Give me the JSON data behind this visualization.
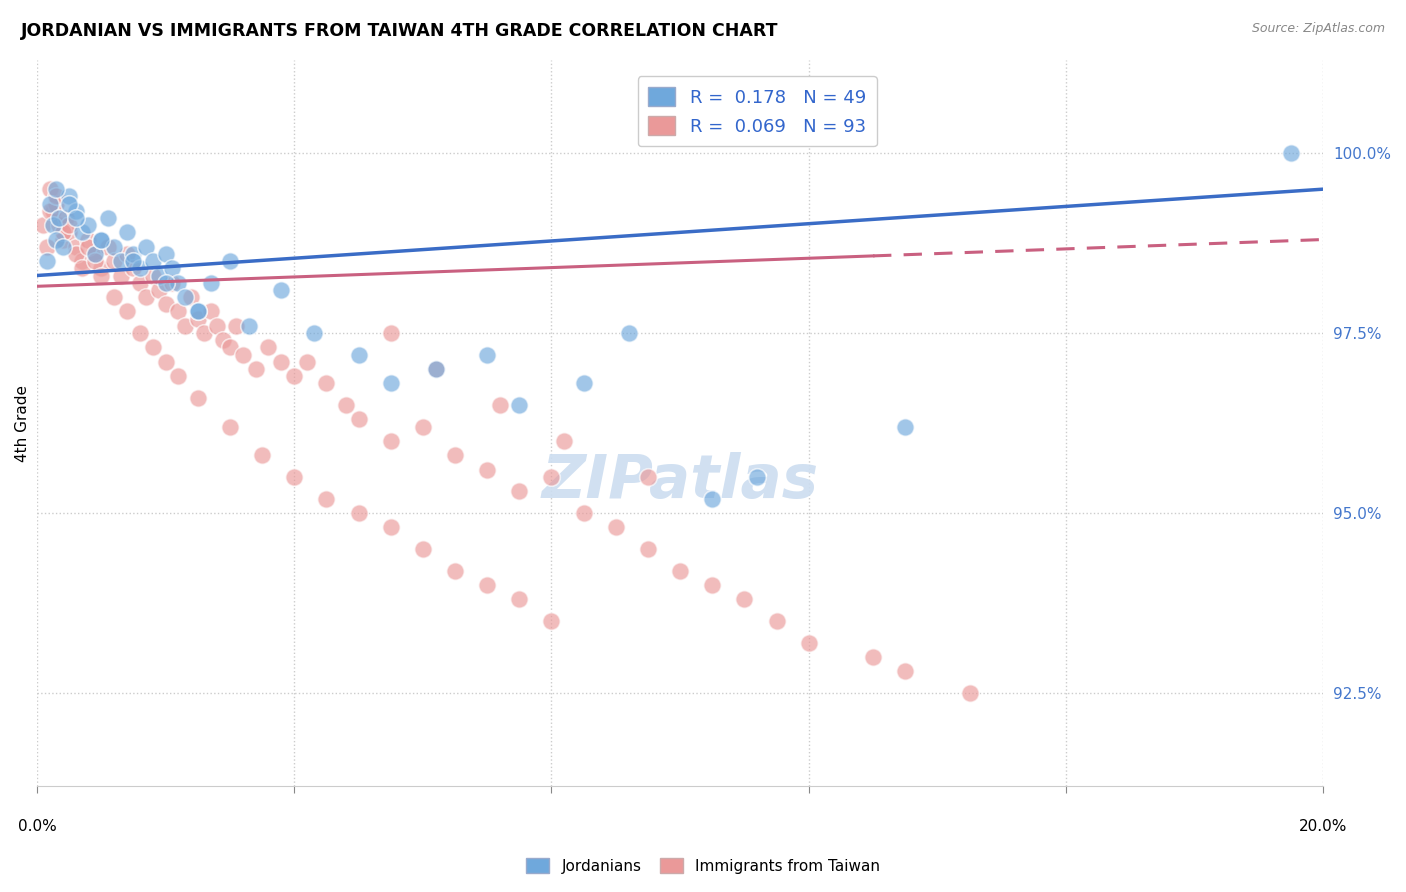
{
  "title": "JORDANIAN VS IMMIGRANTS FROM TAIWAN 4TH GRADE CORRELATION CHART",
  "source_text": "Source: ZipAtlas.com",
  "ylabel": "4th Grade",
  "xlim": [
    0.0,
    20.0
  ],
  "ylim": [
    91.2,
    101.3
  ],
  "yticks": [
    92.5,
    95.0,
    97.5,
    100.0
  ],
  "ytick_labels": [
    "92.5%",
    "95.0%",
    "97.5%",
    "100.0%"
  ],
  "blue_R": 0.178,
  "blue_N": 49,
  "pink_R": 0.069,
  "pink_N": 93,
  "blue_color": "#6fa8dc",
  "pink_color": "#ea9999",
  "blue_line_color": "#3a6cc6",
  "pink_line_color": "#c96080",
  "legend_label_blue": "Jordanians",
  "legend_label_pink": "Immigrants from Taiwan",
  "blue_line_x0": 0.0,
  "blue_line_y0": 98.3,
  "blue_line_x1": 20.0,
  "blue_line_y1": 99.5,
  "pink_line_x0": 0.0,
  "pink_line_y0": 98.15,
  "pink_line_x1": 20.0,
  "pink_line_y1": 98.8,
  "pink_dash_start_x": 13.0,
  "blue_scatter_x": [
    0.15,
    0.2,
    0.25,
    0.3,
    0.35,
    0.4,
    0.5,
    0.6,
    0.7,
    0.8,
    0.9,
    1.0,
    1.1,
    1.2,
    1.3,
    1.4,
    1.5,
    1.6,
    1.7,
    1.8,
    1.9,
    2.0,
    2.1,
    2.2,
    2.3,
    2.5,
    2.7,
    3.0,
    3.3,
    3.8,
    4.3,
    5.0,
    5.5,
    6.2,
    7.0,
    7.5,
    8.5,
    9.2,
    10.5,
    11.2,
    13.5,
    0.3,
    0.5,
    0.6,
    1.0,
    1.5,
    2.0,
    2.5,
    19.5
  ],
  "blue_scatter_y": [
    98.5,
    99.3,
    99.0,
    98.8,
    99.1,
    98.7,
    99.4,
    99.2,
    98.9,
    99.0,
    98.6,
    98.8,
    99.1,
    98.7,
    98.5,
    98.9,
    98.6,
    98.4,
    98.7,
    98.5,
    98.3,
    98.6,
    98.4,
    98.2,
    98.0,
    97.8,
    98.2,
    98.5,
    97.6,
    98.1,
    97.5,
    97.2,
    96.8,
    97.0,
    97.2,
    96.5,
    96.8,
    97.5,
    95.2,
    95.5,
    96.2,
    99.5,
    99.3,
    99.1,
    98.8,
    98.5,
    98.2,
    97.8,
    100.0
  ],
  "pink_scatter_x": [
    0.1,
    0.15,
    0.2,
    0.25,
    0.3,
    0.35,
    0.4,
    0.45,
    0.5,
    0.6,
    0.7,
    0.8,
    0.9,
    1.0,
    1.1,
    1.2,
    1.3,
    1.4,
    1.5,
    1.6,
    1.7,
    1.8,
    1.9,
    2.0,
    2.1,
    2.2,
    2.3,
    2.4,
    2.5,
    2.6,
    2.7,
    2.8,
    2.9,
    3.0,
    3.1,
    3.2,
    3.4,
    3.6,
    3.8,
    4.0,
    4.2,
    4.5,
    4.8,
    5.0,
    5.5,
    6.0,
    6.5,
    7.0,
    7.5,
    8.0,
    8.5,
    0.2,
    0.3,
    0.4,
    0.5,
    0.6,
    0.7,
    0.8,
    0.9,
    1.0,
    1.2,
    1.4,
    1.6,
    1.8,
    2.0,
    2.2,
    2.5,
    3.0,
    3.5,
    4.0,
    4.5,
    5.0,
    5.5,
    6.0,
    6.5,
    7.0,
    7.5,
    8.0,
    9.0,
    9.5,
    10.0,
    10.5,
    11.0,
    11.5,
    12.0,
    13.0,
    13.5,
    14.5,
    5.5,
    6.2,
    7.2,
    8.2,
    9.5
  ],
  "pink_scatter_y": [
    99.0,
    98.7,
    99.5,
    99.2,
    99.3,
    99.0,
    98.8,
    99.1,
    98.9,
    98.7,
    98.5,
    98.8,
    98.6,
    98.4,
    98.7,
    98.5,
    98.3,
    98.6,
    98.4,
    98.2,
    98.0,
    98.3,
    98.1,
    97.9,
    98.2,
    97.8,
    97.6,
    98.0,
    97.7,
    97.5,
    97.8,
    97.6,
    97.4,
    97.3,
    97.6,
    97.2,
    97.0,
    97.3,
    97.1,
    96.9,
    97.1,
    96.8,
    96.5,
    96.3,
    96.0,
    96.2,
    95.8,
    95.6,
    95.3,
    95.5,
    95.0,
    99.2,
    99.4,
    98.9,
    99.0,
    98.6,
    98.4,
    98.7,
    98.5,
    98.3,
    98.0,
    97.8,
    97.5,
    97.3,
    97.1,
    96.9,
    96.6,
    96.2,
    95.8,
    95.5,
    95.2,
    95.0,
    94.8,
    94.5,
    94.2,
    94.0,
    93.8,
    93.5,
    94.8,
    94.5,
    94.2,
    94.0,
    93.8,
    93.5,
    93.2,
    93.0,
    92.8,
    92.5,
    97.5,
    97.0,
    96.5,
    96.0,
    95.5
  ]
}
